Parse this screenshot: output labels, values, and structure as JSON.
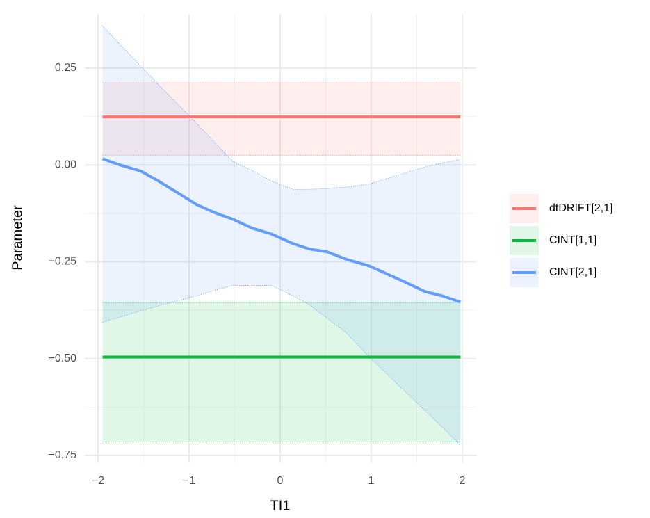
{
  "chart_data": {
    "type": "line_ribbon",
    "x_label": "TI1",
    "y_label": "Parameter",
    "xlim": [
      -2.145,
      2.153
    ],
    "ylim": [
      -0.768,
      0.39
    ],
    "xticks": [
      {
        "value": -2,
        "label": "−2"
      },
      {
        "value": -1,
        "label": "−1"
      },
      0,
      1,
      2
    ],
    "yticks": [
      {
        "value": -0.75,
        "label": "−0.75"
      },
      {
        "value": -0.5,
        "label": "−0.50"
      },
      {
        "value": -0.25,
        "label": "−0.25"
      },
      {
        "value": 0,
        "label": "0.00"
      },
      0.25
    ],
    "grid": true,
    "minor_grid": true,
    "legend": "right",
    "series": [
      {
        "name": "dtDRIFT[2,1]",
        "color": "#F8766D",
        "x": [
          -1.95,
          1.98
        ],
        "values": [
          0.124,
          0.124
        ],
        "lower": [
          0.025,
          0.025
        ],
        "upper": [
          0.212,
          0.212
        ]
      },
      {
        "name": "CINT[1,1]",
        "color": "#00BA38",
        "x": [
          -1.95,
          1.98
        ],
        "values": [
          -0.496,
          -0.496
        ],
        "lower": [
          -0.715,
          -0.715
        ],
        "upper": [
          -0.355,
          -0.355
        ]
      },
      {
        "name": "CINT[2,1]",
        "color": "#619CFF",
        "x": [
          -1.95,
          -1.76,
          -1.53,
          -1.34,
          -1.11,
          -0.92,
          -0.71,
          -0.52,
          -0.31,
          -0.1,
          0.14,
          0.32,
          0.51,
          0.73,
          0.97,
          1.35,
          1.59,
          1.78,
          1.98
        ],
        "values": [
          0.016,
          0,
          -0.016,
          -0.041,
          -0.074,
          -0.102,
          -0.124,
          -0.14,
          -0.163,
          -0.178,
          -0.203,
          -0.217,
          -0.224,
          -0.244,
          -0.26,
          -0.3,
          -0.327,
          -0.338,
          -0.354
        ],
        "lower": [
          -0.406,
          -0.393,
          -0.377,
          -0.364,
          -0.35,
          -0.338,
          -0.323,
          -0.311,
          -0.311,
          -0.311,
          -0.338,
          -0.361,
          -0.395,
          -0.434,
          -0.494,
          -0.58,
          -0.634,
          -0.677,
          -0.724
        ],
        "upper": [
          0.359,
          0.312,
          0.255,
          0.208,
          0.154,
          0.108,
          0.056,
          0.009,
          -0.014,
          -0.041,
          -0.063,
          -0.063,
          -0.061,
          -0.057,
          -0.05,
          -0.022,
          -0.005,
          0.005,
          0.014
        ]
      }
    ]
  }
}
